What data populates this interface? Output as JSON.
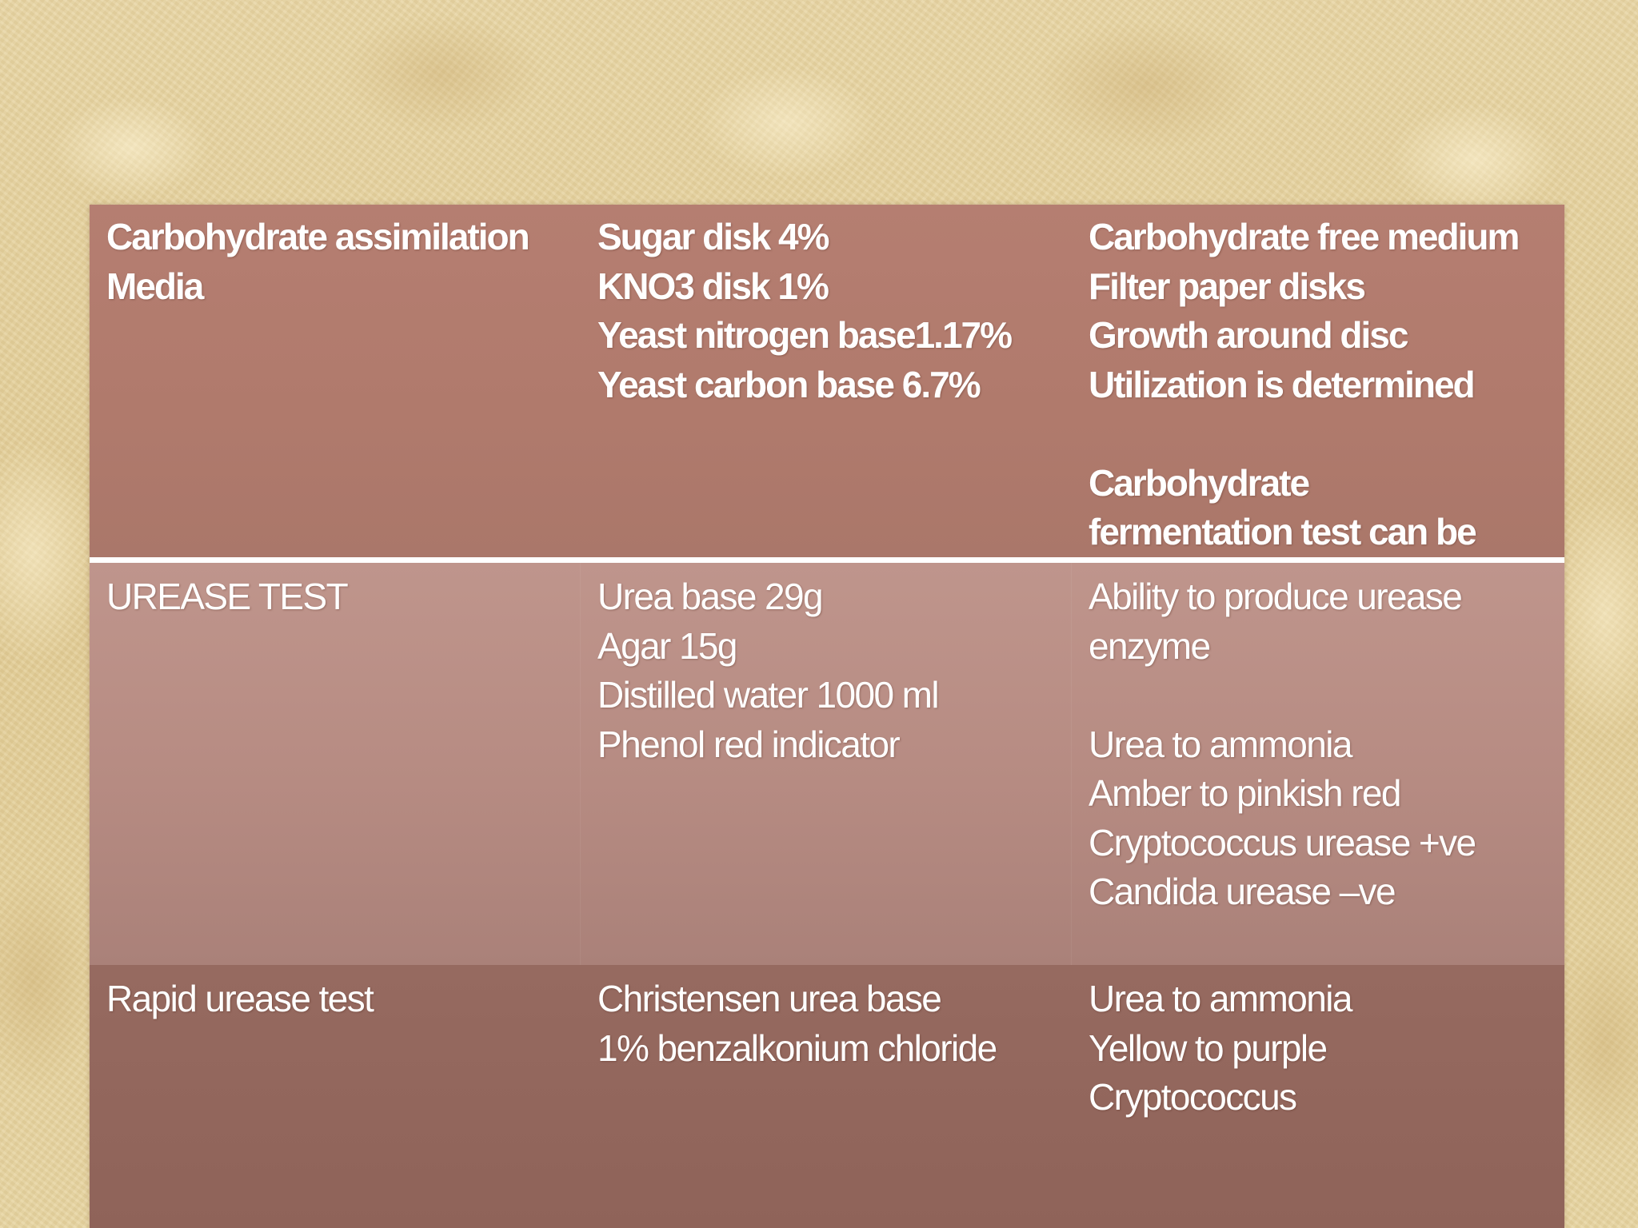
{
  "table": {
    "rows": [
      {
        "col1": [
          "Carbohydrate assimilation",
          "Media"
        ],
        "col2": [
          "Sugar disk 4%",
          "KNO3 disk 1%",
          "Yeast nitrogen base1.17%",
          "Yeast carbon base 6.7%"
        ],
        "col3": [
          "Carbohydrate free medium",
          "Filter paper disks",
          "Growth around disc",
          "Utilization is determined",
          "",
          "Carbohydrate",
          "fermentation    test can be"
        ]
      },
      {
        "col1": [
          "UREASE TEST"
        ],
        "col2": [
          "Urea base 29g",
          "Agar 15g",
          "Distilled water 1000 ml",
          "Phenol red indicator"
        ],
        "col3": [
          "Ability to produce urease",
          "enzyme",
          "",
          "Urea to ammonia",
          "Amber to pinkish red",
          "Cryptococcus urease +ve",
          "Candida urease –ve"
        ]
      },
      {
        "col1": [
          "Rapid urease test"
        ],
        "col2": [
          "Christensen urea base",
          "1% benzalkonium chloride"
        ],
        "col3": [
          "Urea to ammonia",
          "Yellow to purple",
          "Cryptococcus"
        ]
      }
    ]
  }
}
